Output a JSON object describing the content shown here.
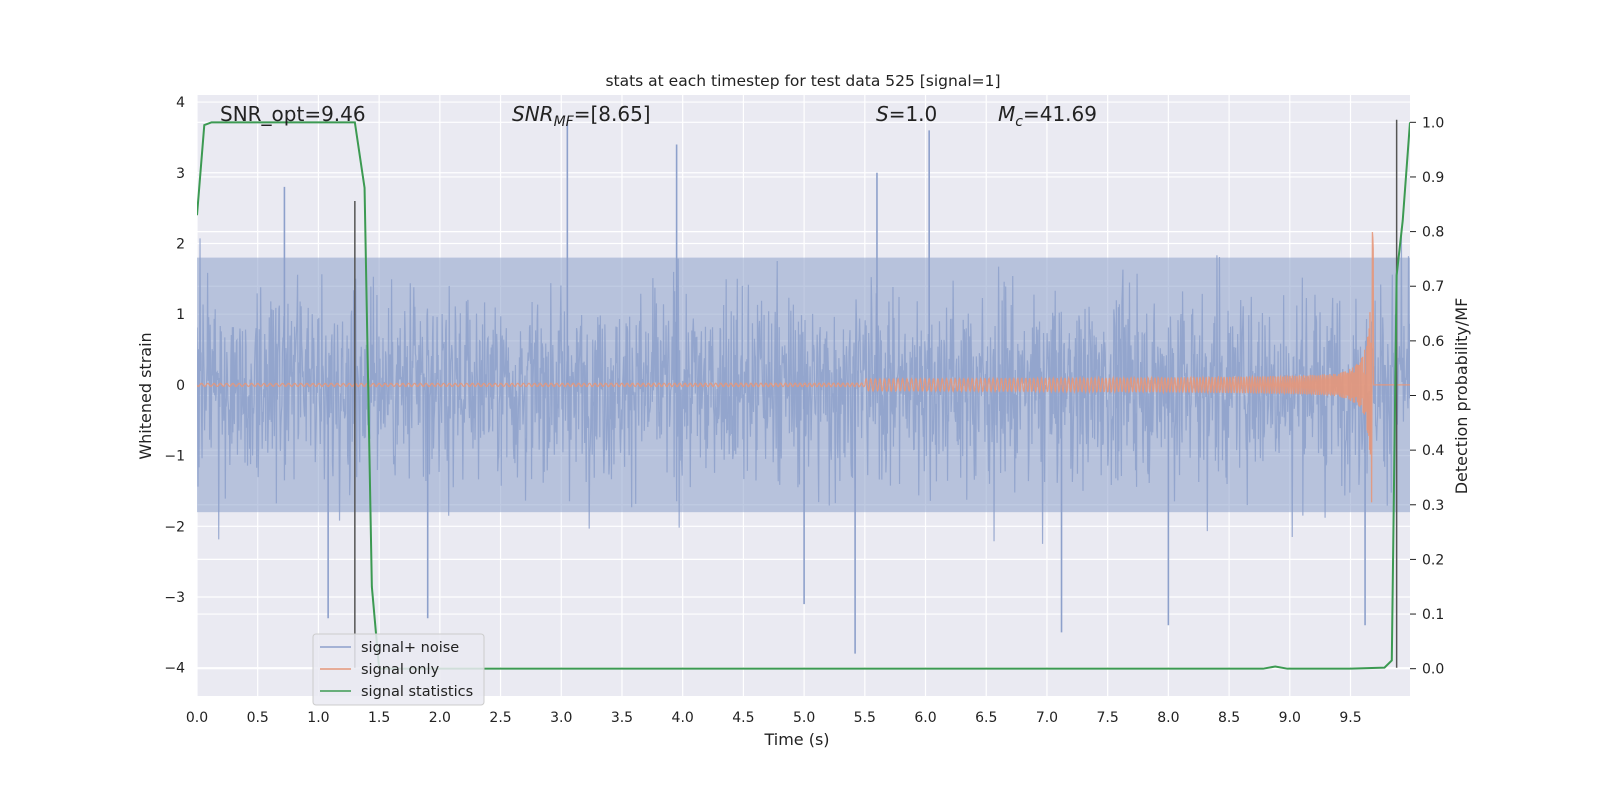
{
  "chart_data": {
    "type": "line",
    "title": "stats at each timestep for test data 525 [signal=1]",
    "xlabel": "Time (s)",
    "ylabel_left": "Whitened strain",
    "ylabel_right": "Detection probability/MF",
    "xlim": [
      0,
      9.99
    ],
    "ylim_left": [
      -4.4,
      4.1
    ],
    "ylim_right": [
      -0.05,
      1.05
    ],
    "x_ticks": [
      "0.0",
      "0.5",
      "1.0",
      "1.5",
      "2.0",
      "2.5",
      "3.0",
      "3.5",
      "4.0",
      "4.5",
      "5.0",
      "5.5",
      "6.0",
      "6.5",
      "7.0",
      "7.5",
      "8.0",
      "8.5",
      "9.0",
      "9.5"
    ],
    "y_ticks_left": [
      "−4",
      "−3",
      "−2",
      "−1",
      "0",
      "1",
      "2",
      "3",
      "4"
    ],
    "y_ticks_right": [
      "0.0",
      "0.1",
      "0.2",
      "0.3",
      "0.4",
      "0.5",
      "0.6",
      "0.7",
      "0.8",
      "0.9",
      "1.0"
    ],
    "annotations": {
      "snr_opt": "SNR_opt=9.46",
      "snr_mf_sym": "SNR",
      "snr_mf_sub": "MF",
      "snr_mf_val": "=[8.65]",
      "s_sym": "S",
      "s_val": "=1.0",
      "mc_sym": "M",
      "mc_sub": "c",
      "mc_val": "=41.69"
    },
    "grid": true,
    "legend_position": "lower-left",
    "series": [
      {
        "name": "signal+ noise",
        "color": "#8da0cb",
        "kind": "noisy strain, whitened",
        "typical_envelope": [
          -1.8,
          1.8
        ],
        "peaks": [
          [
            0.72,
            2.8
          ],
          [
            1.08,
            -3.3
          ],
          [
            1.9,
            -3.3
          ],
          [
            3.05,
            3.7
          ],
          [
            3.95,
            3.4
          ],
          [
            5.0,
            -3.1
          ],
          [
            5.42,
            -3.8
          ],
          [
            5.6,
            3.0
          ],
          [
            6.03,
            3.6
          ],
          [
            7.12,
            -3.5
          ],
          [
            8.0,
            -3.4
          ],
          [
            9.62,
            -3.4
          ]
        ]
      },
      {
        "name": "signal only",
        "color": "#e5977a",
        "kind": "chirp",
        "t_merger": 9.69,
        "peak_amplitude": 2.2
      },
      {
        "name": "signal statistics",
        "color": "#3c9a52",
        "axis": "right",
        "x": [
          0.0,
          0.06,
          0.12,
          1.2,
          1.3,
          1.38,
          1.44,
          1.5,
          8.78,
          8.88,
          8.98,
          9.5,
          9.78,
          9.84,
          9.88,
          9.93,
          9.99
        ],
        "y": [
          0.83,
          0.995,
          1.0,
          1.0,
          1.0,
          0.88,
          0.15,
          0.0,
          0.0,
          0.004,
          0.0,
          0.0,
          0.002,
          0.015,
          0.72,
          0.82,
          1.0
        ]
      }
    ],
    "vertical_markers": [
      {
        "x": 1.3,
        "y_from": -4.0,
        "y_to": 2.6
      },
      {
        "x": 9.88,
        "y_from": -4.0,
        "y_to": 3.75
      }
    ]
  }
}
